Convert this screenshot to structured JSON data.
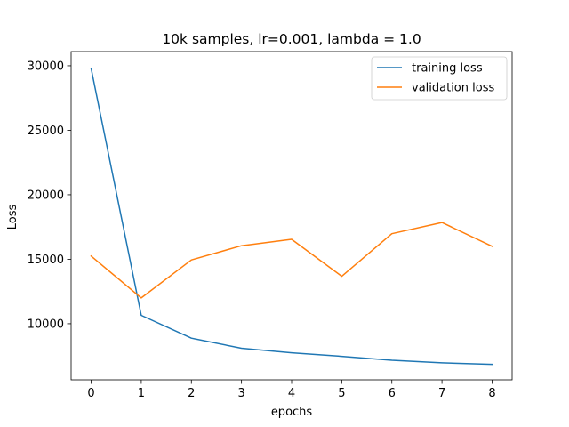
{
  "chart_data": {
    "type": "line",
    "title": "10k samples, lr=0.001, lambda = 1.0",
    "xlabel": "epochs",
    "ylabel": "Loss",
    "x": [
      0,
      1,
      2,
      3,
      4,
      5,
      6,
      7,
      8
    ],
    "xticks": [
      "0",
      "1",
      "2",
      "3",
      "4",
      "5",
      "6",
      "7",
      "8"
    ],
    "yticks": [
      "10000",
      "15000",
      "20000",
      "25000",
      "30000"
    ],
    "ytick_values": [
      10000,
      15000,
      20000,
      25000,
      30000
    ],
    "xlim": [
      -0.4,
      8.4
    ],
    "ylim": [
      5650,
      31100
    ],
    "grid": false,
    "legend_position": "upper right",
    "series": [
      {
        "name": "training loss",
        "color": "#1f77b4",
        "values": [
          29800,
          10650,
          8880,
          8100,
          7750,
          7470,
          7170,
          6970,
          6850
        ]
      },
      {
        "name": "validation loss",
        "color": "#ff7f0e",
        "values": [
          15250,
          12000,
          14950,
          16050,
          16550,
          13680,
          16980,
          17850,
          16000
        ]
      }
    ]
  }
}
